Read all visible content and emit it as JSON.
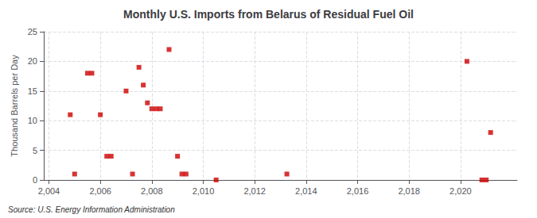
{
  "chart_data": {
    "type": "scatter",
    "title": "Monthly U.S. Imports from Belarus of Residual Fuel Oil",
    "ylabel": "Thousand Barrels per Day",
    "source": "Source: U.S. Energy Information Administration",
    "color": "#cc0000",
    "marker": "square",
    "grid": true,
    "xlim": [
      2003.8,
      2022.2
    ],
    "ylim": [
      0,
      25
    ],
    "xticks": [
      2004,
      2006,
      2008,
      2010,
      2012,
      2014,
      2016,
      2018,
      2020
    ],
    "yticks": [
      0,
      5,
      10,
      15,
      20,
      25
    ],
    "x": [
      2004.83,
      2005.0,
      2005.5,
      2005.67,
      2006.0,
      2006.25,
      2006.42,
      2007.0,
      2007.25,
      2007.5,
      2007.67,
      2007.83,
      2008.0,
      2008.17,
      2008.33,
      2008.67,
      2009.0,
      2009.17,
      2009.33,
      2010.5,
      2013.25,
      2020.25,
      2020.83,
      2021.0,
      2021.17
    ],
    "values": [
      11,
      1,
      18,
      18,
      11,
      4,
      4,
      15,
      1,
      19,
      16,
      13,
      12,
      12,
      12,
      22,
      4,
      1,
      1,
      0,
      1,
      20,
      0,
      0,
      8
    ]
  }
}
